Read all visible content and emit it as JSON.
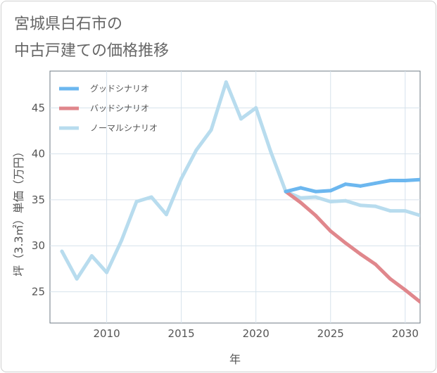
{
  "page": {
    "title_lines": [
      "宮城県白石市の",
      "中古戸建ての価格推移"
    ]
  },
  "chart_data": {
    "type": "line",
    "title": "宮城県白石市の中古戸建ての価格推移",
    "xlabel": "年",
    "ylabel": "坪（3.3㎡）単価（万円）",
    "xlim": [
      2006.2,
      2031
    ],
    "ylim": [
      21.6,
      49
    ],
    "x_ticks": [
      2010,
      2015,
      2020,
      2025,
      2030
    ],
    "y_ticks": [
      25,
      30,
      35,
      40,
      45
    ],
    "grid": true,
    "legend_position": "top-left",
    "series": [
      {
        "name": "グッドシナリオ",
        "color": "#6cb7ef",
        "x": [
          2022,
          2023,
          2024,
          2025,
          2026,
          2027,
          2028,
          2029,
          2030,
          2031
        ],
        "values": [
          35.9,
          36.3,
          35.9,
          36.0,
          36.7,
          36.5,
          36.8,
          37.1,
          37.1,
          37.2
        ]
      },
      {
        "name": "バッドシナリオ",
        "color": "#e0878c",
        "x": [
          2022,
          2023,
          2024,
          2025,
          2026,
          2027,
          2028,
          2029,
          2030,
          2031
        ],
        "values": [
          35.9,
          34.7,
          33.3,
          31.6,
          30.3,
          29.1,
          28.0,
          26.4,
          25.2,
          23.9
        ]
      },
      {
        "name": "ノーマルシナリオ",
        "color": "#b8dcee",
        "x": [
          2007,
          2008,
          2009,
          2010,
          2011,
          2012,
          2013,
          2014,
          2015,
          2016,
          2017,
          2018,
          2019,
          2020,
          2021,
          2022,
          2023,
          2024,
          2025,
          2026,
          2027,
          2028,
          2029,
          2030,
          2031
        ],
        "values": [
          29.4,
          26.4,
          28.9,
          27.1,
          30.6,
          34.8,
          35.3,
          33.4,
          37.3,
          40.4,
          42.6,
          47.8,
          43.8,
          45.0,
          40.2,
          35.9,
          35.2,
          35.3,
          34.8,
          34.9,
          34.4,
          34.3,
          33.8,
          33.8,
          33.3
        ]
      }
    ]
  }
}
